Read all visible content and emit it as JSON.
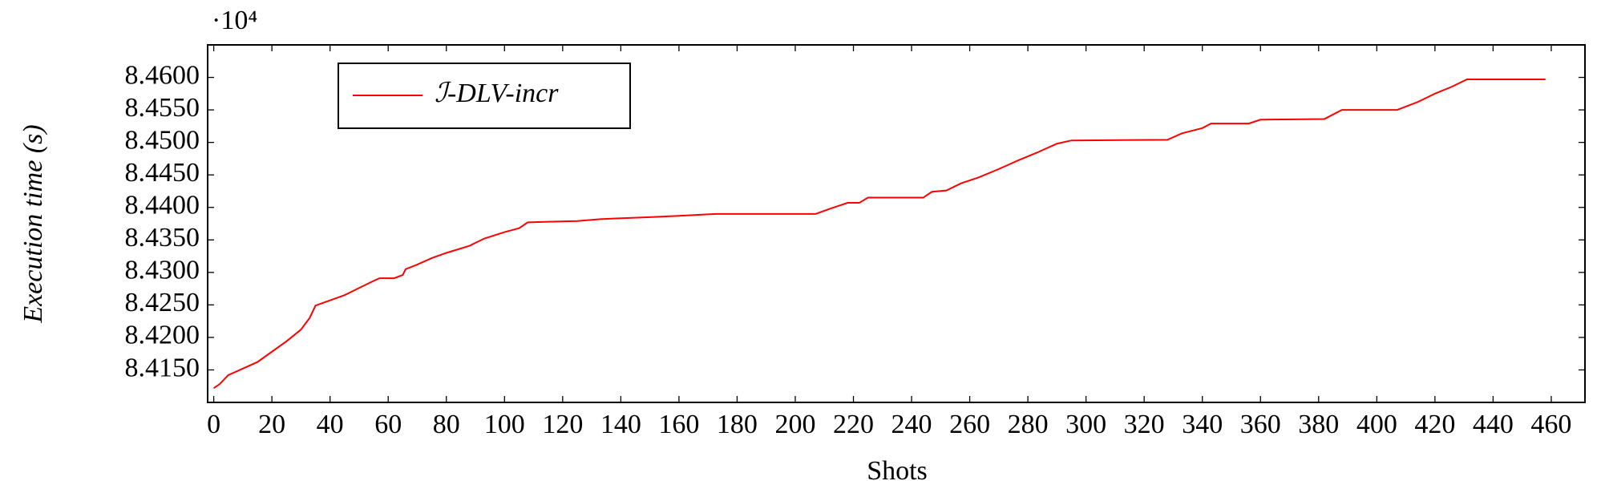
{
  "chart_data": {
    "type": "line",
    "y_multiplier": "·10⁴",
    "xlabel": "Shots",
    "ylabel": "Execution time (s)",
    "x": [
      0,
      2,
      5,
      10,
      15,
      20,
      25,
      30,
      33,
      35,
      40,
      45,
      50,
      55,
      57,
      62,
      65,
      66,
      70,
      75,
      80,
      88,
      93,
      100,
      105,
      108,
      115,
      125,
      133,
      150,
      160,
      173,
      207,
      212,
      218,
      222,
      225,
      244,
      247,
      252,
      257,
      263,
      270,
      277,
      283,
      290,
      295,
      328,
      333,
      340,
      343,
      356,
      360,
      382,
      388,
      407,
      414,
      420,
      426,
      431,
      458
    ],
    "series": [
      {
        "name": "ℐ-DLV-incr",
        "color": "#ff0000",
        "values": [
          8.4122,
          8.4128,
          8.4142,
          8.4152,
          8.4162,
          8.4178,
          8.4194,
          8.4212,
          8.423,
          8.4249,
          8.4257,
          8.4265,
          8.4276,
          8.4287,
          8.4291,
          8.4291,
          8.4296,
          8.4305,
          8.4312,
          8.4322,
          8.433,
          8.4341,
          8.4352,
          8.4362,
          8.4368,
          8.4377,
          8.4378,
          8.4379,
          8.4382,
          8.4385,
          8.4387,
          8.439,
          8.439,
          8.4398,
          8.4407,
          8.4407,
          8.4415,
          8.4415,
          8.4424,
          8.4426,
          8.4437,
          8.4446,
          8.4459,
          8.4473,
          8.4484,
          8.4498,
          8.4503,
          8.4504,
          8.4514,
          8.4522,
          8.4529,
          8.4529,
          8.4535,
          8.4536,
          8.455,
          8.455,
          8.4562,
          8.4575,
          8.4586,
          8.4597,
          8.4597
        ]
      }
    ],
    "xlim": [
      -2.1,
      471.6
    ],
    "ylim": [
      8.41,
      8.465
    ],
    "xticks": [
      0,
      20,
      40,
      60,
      80,
      100,
      120,
      140,
      160,
      180,
      200,
      220,
      240,
      260,
      280,
      300,
      320,
      340,
      360,
      380,
      400,
      420,
      440,
      460
    ],
    "yticks": [
      {
        "value": 8.415,
        "label": "8.4150"
      },
      {
        "value": 8.42,
        "label": "8.4200"
      },
      {
        "value": 8.425,
        "label": "8.4250"
      },
      {
        "value": 8.43,
        "label": "8.4300"
      },
      {
        "value": 8.435,
        "label": "8.4350"
      },
      {
        "value": 8.44,
        "label": "8.4400"
      },
      {
        "value": 8.445,
        "label": "8.4450"
      },
      {
        "value": 8.45,
        "label": "8.4500"
      },
      {
        "value": 8.455,
        "label": "8.4550"
      },
      {
        "value": 8.46,
        "label": "8.4600"
      }
    ],
    "legend": "top-left",
    "grid": false
  }
}
